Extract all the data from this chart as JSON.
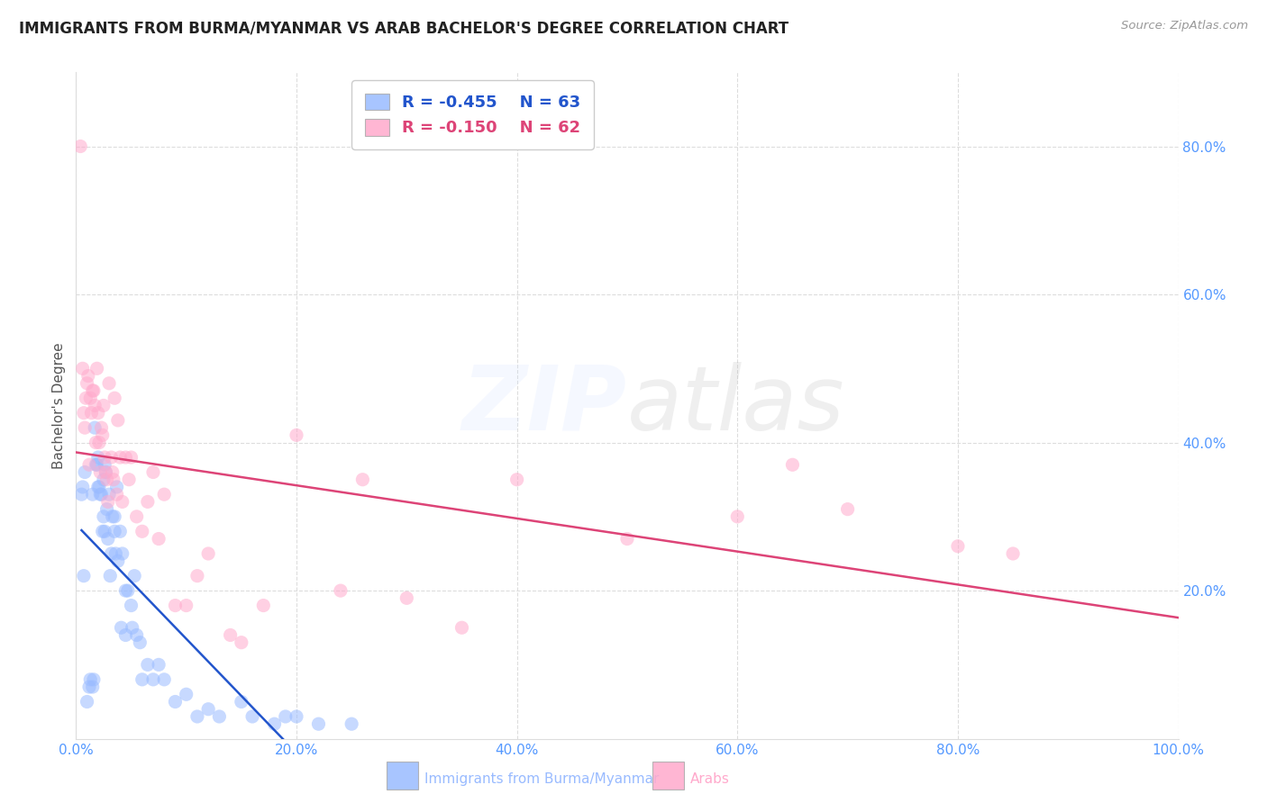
{
  "title": "IMMIGRANTS FROM BURMA/MYANMAR VS ARAB BACHELOR'S DEGREE CORRELATION CHART",
  "source": "Source: ZipAtlas.com",
  "ylabel": "Bachelor's Degree",
  "legend_label1": "Immigrants from Burma/Myanmar",
  "legend_label2": "Arabs",
  "r1": -0.455,
  "n1": 63,
  "r2": -0.15,
  "n2": 62,
  "title_color": "#222222",
  "source_color": "#999999",
  "axis_tick_color": "#5599ff",
  "blue_dot_color": "#99bbff",
  "pink_dot_color": "#ffaacc",
  "blue_line_color": "#2255cc",
  "pink_line_color": "#dd4477",
  "grid_color": "#dddddd",
  "blue_scatter_x": [
    0.5,
    0.6,
    0.7,
    0.8,
    1.0,
    1.2,
    1.3,
    1.5,
    1.5,
    1.6,
    1.7,
    1.8,
    1.9,
    2.0,
    2.0,
    2.1,
    2.2,
    2.3,
    2.4,
    2.5,
    2.5,
    2.6,
    2.6,
    2.7,
    2.8,
    2.9,
    3.0,
    3.1,
    3.2,
    3.3,
    3.5,
    3.5,
    3.6,
    3.7,
    3.8,
    4.0,
    4.1,
    4.2,
    4.5,
    4.5,
    4.7,
    5.0,
    5.1,
    5.3,
    5.5,
    5.8,
    6.0,
    6.5,
    7.0,
    7.5,
    8.0,
    9.0,
    10.0,
    11.0,
    12.0,
    13.0,
    15.0,
    16.0,
    18.0,
    19.0,
    20.0,
    22.0,
    25.0
  ],
  "blue_scatter_y": [
    33,
    34,
    22,
    36,
    5,
    7,
    8,
    33,
    7,
    8,
    42,
    37,
    37,
    38,
    34,
    34,
    33,
    33,
    28,
    30,
    35,
    37,
    28,
    36,
    31,
    27,
    33,
    22,
    25,
    30,
    30,
    28,
    25,
    34,
    24,
    28,
    15,
    25,
    20,
    14,
    20,
    18,
    15,
    22,
    14,
    13,
    8,
    10,
    8,
    10,
    8,
    5,
    6,
    3,
    4,
    3,
    5,
    3,
    2,
    3,
    3,
    2,
    2
  ],
  "pink_scatter_x": [
    0.4,
    0.6,
    0.7,
    0.8,
    0.9,
    1.0,
    1.1,
    1.2,
    1.3,
    1.4,
    1.5,
    1.6,
    1.7,
    1.8,
    1.9,
    2.0,
    2.1,
    2.2,
    2.3,
    2.4,
    2.5,
    2.6,
    2.7,
    2.8,
    2.9,
    3.0,
    3.2,
    3.3,
    3.4,
    3.5,
    3.7,
    3.8,
    4.0,
    4.2,
    4.5,
    4.8,
    5.0,
    5.5,
    6.0,
    6.5,
    7.0,
    7.5,
    8.0,
    9.0,
    10.0,
    11.0,
    12.0,
    14.0,
    15.0,
    17.0,
    20.0,
    24.0,
    26.0,
    30.0,
    35.0,
    40.0,
    50.0,
    60.0,
    65.0,
    70.0,
    80.0,
    85.0
  ],
  "pink_scatter_y": [
    80,
    50,
    44,
    42,
    46,
    48,
    49,
    37,
    46,
    44,
    47,
    47,
    45,
    40,
    50,
    44,
    40,
    36,
    42,
    41,
    45,
    38,
    36,
    35,
    32,
    48,
    38,
    36,
    35,
    46,
    33,
    43,
    38,
    32,
    38,
    35,
    38,
    30,
    28,
    32,
    36,
    27,
    33,
    18,
    18,
    22,
    25,
    14,
    13,
    18,
    41,
    20,
    35,
    19,
    15,
    35,
    27,
    30,
    37,
    31,
    26,
    25
  ],
  "xlim": [
    0,
    100
  ],
  "ylim": [
    0,
    90
  ],
  "yticks": [
    20,
    40,
    60,
    80
  ],
  "ytick_labels": [
    "20.0%",
    "40.0%",
    "60.0%",
    "80.0%"
  ],
  "xticks": [
    0,
    20,
    40,
    60,
    80,
    100
  ],
  "xtick_labels": [
    "0.0%",
    "20.0%",
    "40.0%",
    "60.0%",
    "80.0%",
    "100.0%"
  ]
}
